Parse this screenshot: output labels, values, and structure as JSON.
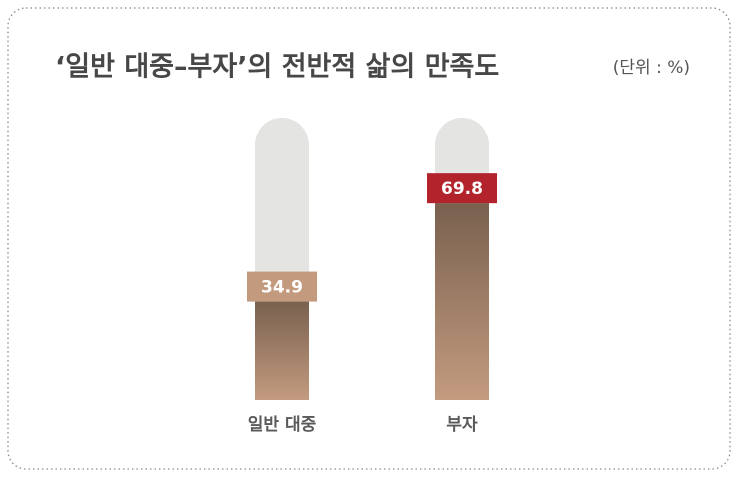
{
  "chart_data": {
    "type": "bar",
    "title": "‘일반 대중–부자’의 전반적 삶의 만족도",
    "unit": "(단위 : %)",
    "categories": [
      "일반 대중",
      "부자"
    ],
    "values": [
      34.9,
      69.8
    ],
    "colors": [
      "#c39b7f",
      "#c39b7f"
    ],
    "label_colors": [
      "#c49a7e",
      "#b3232b"
    ],
    "track_color": "#e4e4e2",
    "ylim": [
      0,
      100
    ]
  }
}
